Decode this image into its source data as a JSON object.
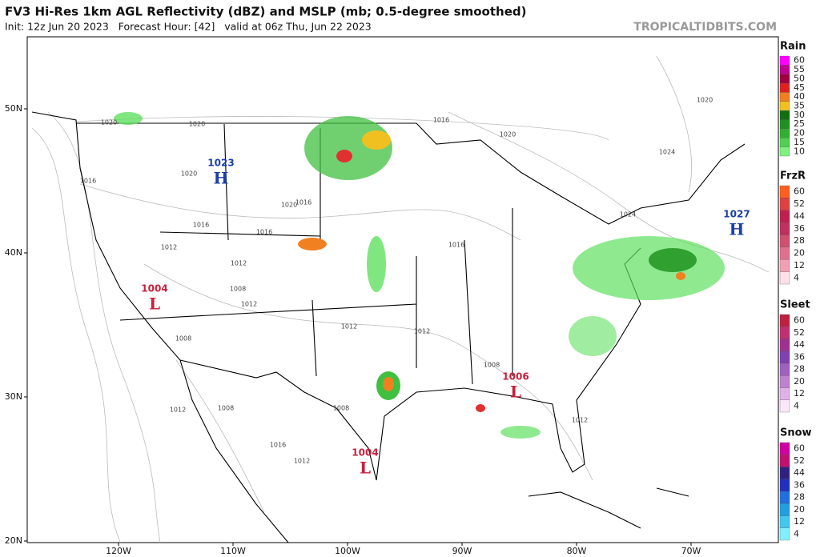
{
  "header": {
    "title": "FV3 Hi-Res 1km AGL Reflectivity (dBZ) and MSLP (mb; 0.5-degree smoothed)",
    "subtitle": "Init: 12z Jun 20 2023   Forecast Hour: [42]   valid at 06z Thu, Jun 22 2023",
    "site": "TROPICALTIDBITS.COM"
  },
  "map": {
    "lat_labels": [
      "50N",
      "40N",
      "30N",
      "20N"
    ],
    "lon_labels": [
      "120W",
      "110W",
      "100W",
      "90W",
      "80W",
      "70W"
    ],
    "pressure_centers": [
      {
        "value": "1023",
        "symbol": "H"
      },
      {
        "value": "1027",
        "symbol": "H"
      },
      {
        "value": "1004",
        "symbol": "L"
      },
      {
        "value": "1006",
        "symbol": "L"
      },
      {
        "value": "1004",
        "symbol": "L"
      }
    ],
    "isobar_labels": [
      "1020",
      "1020",
      "1020",
      "1016",
      "1016",
      "1012",
      "1016",
      "1020",
      "1016",
      "1012",
      "1008",
      "1012",
      "1012",
      "1012",
      "1008",
      "1008",
      "1016",
      "1016",
      "1020",
      "1024",
      "1024",
      "1020",
      "1012",
      "1008",
      "1008",
      "1016",
      "1012",
      "1012"
    ]
  },
  "legends": [
    {
      "title": "Rain",
      "levels": [
        "60",
        "55",
        "50",
        "45",
        "40",
        "35",
        "30",
        "25",
        "20",
        "15",
        "10"
      ]
    },
    {
      "title": "FrzR",
      "levels": [
        "60",
        "52",
        "44",
        "36",
        "28",
        "20",
        "12",
        "4"
      ]
    },
    {
      "title": "Sleet",
      "levels": [
        "60",
        "52",
        "44",
        "36",
        "28",
        "20",
        "12",
        "4"
      ]
    },
    {
      "title": "Snow",
      "levels": [
        "60",
        "52",
        "44",
        "36",
        "28",
        "20",
        "12",
        "4"
      ]
    }
  ]
}
